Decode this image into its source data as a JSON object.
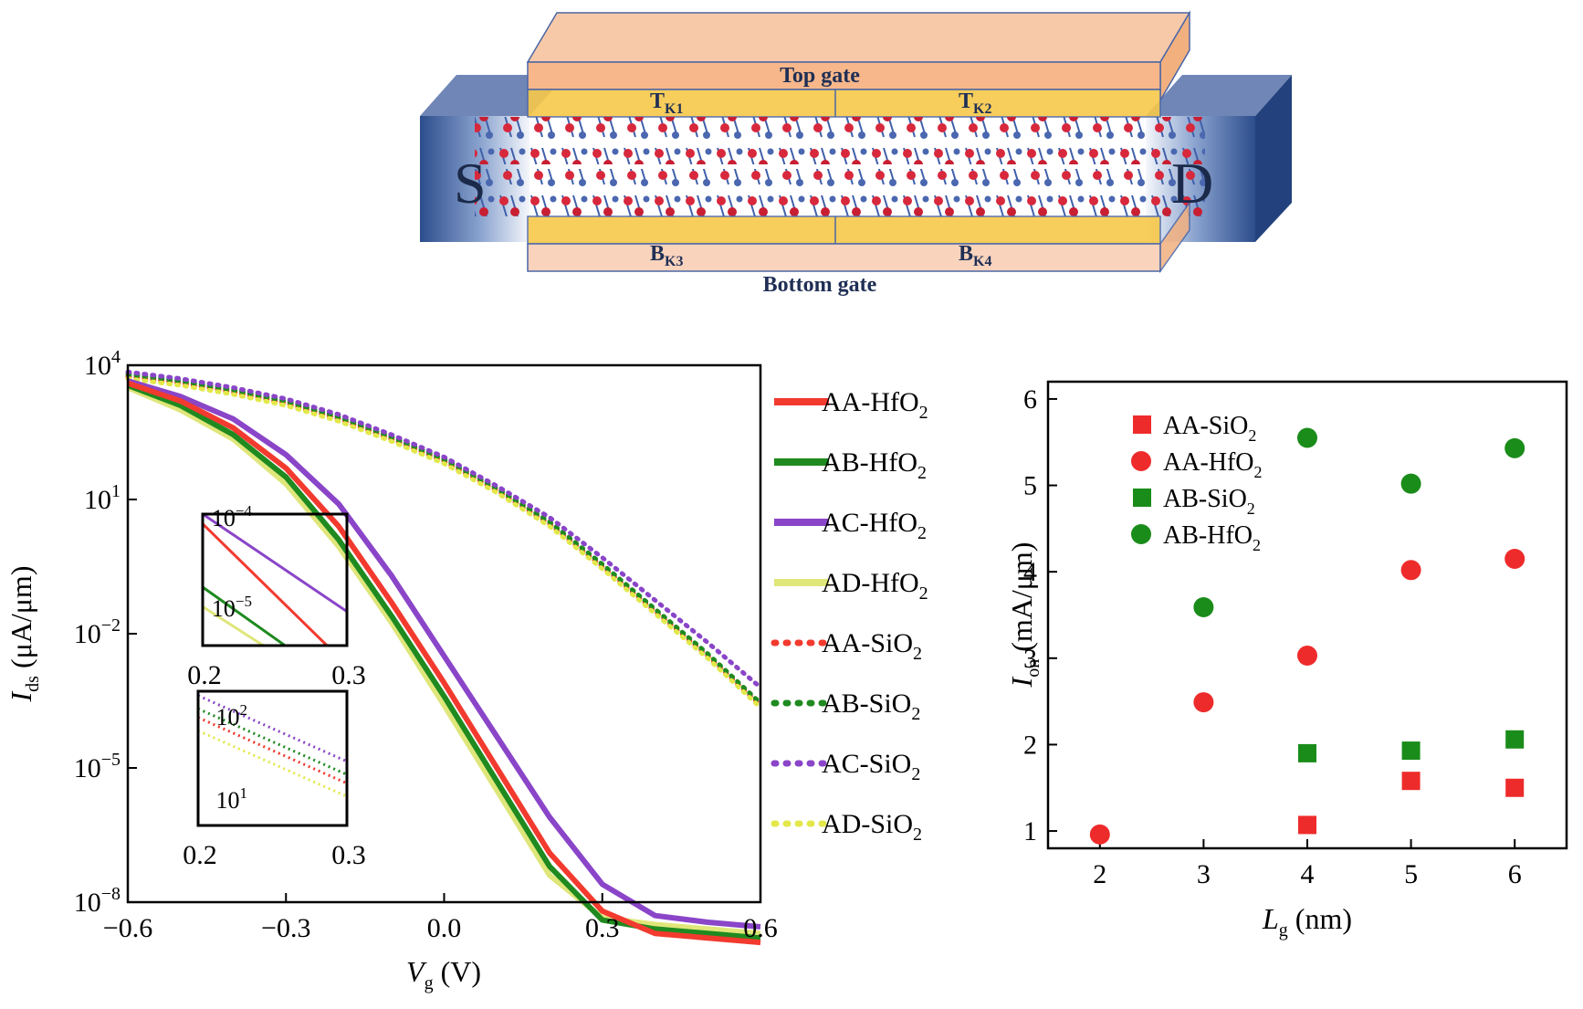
{
  "device": {
    "top_gate": "Top gate",
    "bottom_gate": "Bottom gate",
    "source": "S",
    "drain": "D",
    "tk1": {
      "main": "T",
      "sub": "K1"
    },
    "tk2": {
      "main": "T",
      "sub": "K2"
    },
    "bk3": {
      "main": "B",
      "sub": "K3"
    },
    "bk4": {
      "main": "B",
      "sub": "K4"
    }
  },
  "chart_data": [
    {
      "type": "line",
      "xlabel": {
        "main": "V",
        "sub": "g",
        "unit": " (V)"
      },
      "ylabel": {
        "main": "I",
        "sub": "ds",
        "unit": " (μA/μm)"
      },
      "xlim": [
        -0.6,
        0.6
      ],
      "ylim_log10": [
        -8,
        4
      ],
      "xticks": [
        -0.6,
        -0.3,
        0.0,
        0.3,
        0.6
      ],
      "xtick_labels": [
        "−0.6",
        "−0.3",
        "0.0",
        "0.3",
        "0.6"
      ],
      "yticks_log10": [
        4,
        1,
        -2,
        -5,
        -8
      ],
      "ytick_labels": [
        {
          "b": "10",
          "e": "4"
        },
        {
          "b": "10",
          "e": "1"
        },
        {
          "b": "10",
          "e": "−2"
        },
        {
          "b": "10",
          "e": "−5"
        },
        {
          "b": "10",
          "e": "−8"
        }
      ],
      "x": [
        -0.6,
        -0.5,
        -0.4,
        -0.3,
        -0.2,
        -0.1,
        0.0,
        0.1,
        0.2,
        0.3,
        0.4,
        0.5,
        0.6
      ],
      "series": [
        {
          "name": "AA-HfO2",
          "label": "AA-HfO",
          "sub": "2",
          "color": "#f23a2f",
          "style": "solid",
          "log10_values": [
            3.6,
            3.2,
            2.6,
            1.7,
            0.4,
            -1.3,
            -3.1,
            -5.0,
            -6.9,
            -8.2,
            -8.7,
            -8.8,
            -8.9
          ]
        },
        {
          "name": "AB-HfO2",
          "label": "AB-HfO",
          "sub": "2",
          "color": "#1f8a1f",
          "style": "solid",
          "log10_values": [
            3.55,
            3.1,
            2.45,
            1.5,
            0.1,
            -1.6,
            -3.4,
            -5.3,
            -7.2,
            -8.4,
            -8.6,
            -8.7,
            -8.8
          ]
        },
        {
          "name": "AC-HfO2",
          "label": "AC-HfO",
          "sub": "2",
          "color": "#8a45c8",
          "style": "solid",
          "log10_values": [
            3.65,
            3.3,
            2.8,
            2.0,
            0.9,
            -0.7,
            -2.5,
            -4.3,
            -6.1,
            -7.6,
            -8.3,
            -8.45,
            -8.55
          ]
        },
        {
          "name": "AD-HfO2",
          "label": "AD-HfO",
          "sub": "2",
          "color": "#dfe67a",
          "style": "solid",
          "log10_values": [
            3.5,
            3.0,
            2.35,
            1.35,
            -0.05,
            -1.75,
            -3.6,
            -5.5,
            -7.4,
            -8.35,
            -8.5,
            -8.6,
            -8.7
          ]
        },
        {
          "name": "AA-SiO2",
          "label": "AA-SiO",
          "sub": "2",
          "color": "#f23a2f",
          "style": "dotted",
          "log10_values": [
            3.75,
            3.6,
            3.4,
            3.15,
            2.8,
            2.35,
            1.85,
            1.2,
            0.45,
            -0.5,
            -1.5,
            -2.5,
            -3.6
          ]
        },
        {
          "name": "AB-SiO2",
          "label": "AB-SiO",
          "sub": "2",
          "color": "#1f8a1f",
          "style": "dotted",
          "log10_values": [
            3.8,
            3.65,
            3.45,
            3.2,
            2.85,
            2.4,
            1.9,
            1.25,
            0.5,
            -0.45,
            -1.45,
            -2.45,
            -3.55
          ]
        },
        {
          "name": "AC-SiO2",
          "label": "AC-SiO",
          "sub": "2",
          "color": "#8a45c8",
          "style": "dotted",
          "log10_values": [
            3.85,
            3.7,
            3.5,
            3.25,
            2.9,
            2.45,
            1.95,
            1.3,
            0.6,
            -0.3,
            -1.25,
            -2.2,
            -3.2
          ]
        },
        {
          "name": "AD-SiO2",
          "label": "AD-SiO",
          "sub": "2",
          "color": "#e3e84a",
          "style": "dotted",
          "log10_values": [
            3.7,
            3.55,
            3.35,
            3.1,
            2.75,
            2.3,
            1.8,
            1.15,
            0.4,
            -0.55,
            -1.55,
            -2.55,
            -3.65
          ]
        }
      ],
      "insets": [
        {
          "xlim": [
            0.2,
            0.3
          ],
          "ylim_log10": [
            -5.35,
            -4.0
          ],
          "xtick_labels": [
            "0.2",
            "0.3"
          ],
          "ytick_labels": [
            {
              "b": "10",
              "e": "−4"
            },
            {
              "b": "10",
              "e": "−5"
            }
          ],
          "lines": [
            {
              "color": "#f23a2f",
              "style": "solid",
              "log10_start": -4.1,
              "log10_end": -5.55
            },
            {
              "color": "#8a45c8",
              "style": "solid",
              "log10_start": -4.0,
              "log10_end": -5.0
            },
            {
              "color": "#1f8a1f",
              "style": "solid",
              "log10_start": -4.75,
              "log10_end": -5.8
            },
            {
              "color": "#dfe67a",
              "style": "solid",
              "log10_start": -4.95,
              "log10_end": -5.9
            }
          ]
        },
        {
          "xlim": [
            0.2,
            0.3
          ],
          "ylim_log10": [
            0.92,
            2.45
          ],
          "xtick_labels": [
            "0.2",
            "0.3"
          ],
          "ytick_labels": [
            {
              "b": "10",
              "e": "2"
            },
            {
              "b": "10",
              "e": "1"
            }
          ],
          "lines": [
            {
              "color": "#8a45c8",
              "style": "dotted",
              "log10_start": 2.4,
              "log10_end": 1.65
            },
            {
              "color": "#1f8a1f",
              "style": "dotted",
              "log10_start": 2.25,
              "log10_end": 1.5
            },
            {
              "color": "#f23a2f",
              "style": "dotted",
              "log10_start": 2.15,
              "log10_end": 1.4
            },
            {
              "color": "#e3e84a",
              "style": "dotted",
              "log10_start": 2.0,
              "log10_end": 1.25
            }
          ]
        }
      ]
    },
    {
      "type": "scatter",
      "xlabel": {
        "main": "L",
        "sub": "g",
        "unit": " (nm)"
      },
      "ylabel": {
        "main": "I",
        "sub": "on",
        "unit": " (mA/μm)"
      },
      "xlim": [
        1.5,
        6.5
      ],
      "ylim": [
        0.8,
        6.2
      ],
      "xticks": [
        2,
        3,
        4,
        5,
        6
      ],
      "yticks": [
        1,
        2,
        3,
        4,
        5,
        6
      ],
      "series": [
        {
          "name": "AA-SiO2",
          "label": "AA-SiO",
          "sub": "2",
          "color": "#ee2b2b",
          "marker": "square",
          "x": [
            4,
            5,
            6
          ],
          "y": [
            1.07,
            1.58,
            1.5
          ]
        },
        {
          "name": "AA-HfO2",
          "label": "AA-HfO",
          "sub": "2",
          "color": "#ee2b2b",
          "marker": "circle",
          "x": [
            2,
            3,
            4,
            5,
            6
          ],
          "y": [
            0.96,
            2.49,
            3.03,
            4.02,
            4.15
          ]
        },
        {
          "name": "AB-SiO2",
          "label": "AB-SiO",
          "sub": "2",
          "color": "#1a8c1a",
          "marker": "square",
          "x": [
            4,
            5,
            6
          ],
          "y": [
            1.9,
            1.93,
            2.06
          ]
        },
        {
          "name": "AB-HfO2",
          "label": "AB-HfO",
          "sub": "2",
          "color": "#1a8c1a",
          "marker": "circle",
          "x": [
            3,
            4,
            5,
            6
          ],
          "y": [
            3.59,
            5.55,
            5.02,
            5.43
          ]
        }
      ]
    }
  ]
}
